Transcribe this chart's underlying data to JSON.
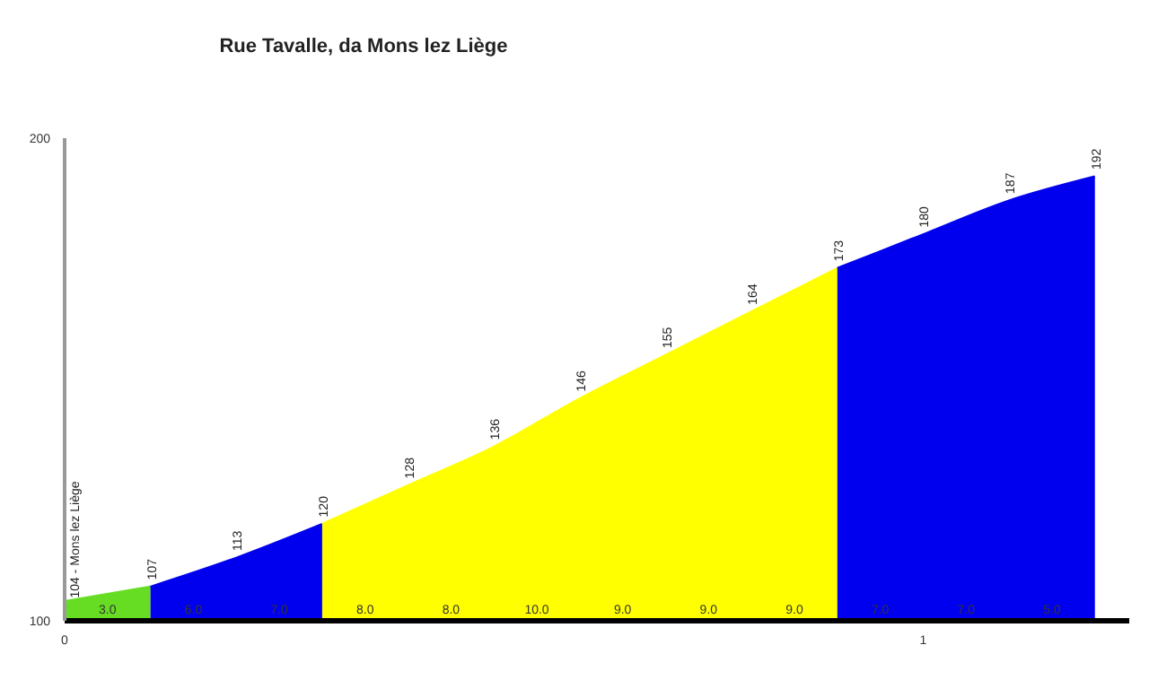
{
  "chart_data": {
    "type": "area",
    "title": "Rue Tavalle, da Mons lez Liège",
    "series": [
      {
        "color": "#66dd22",
        "x": [
          0,
          0.1
        ],
        "values": [
          104,
          107
        ],
        "value_labels": [
          null,
          "107"
        ]
      },
      {
        "color": "#0000ee",
        "x": [
          0.1,
          0.2,
          0.3
        ],
        "values": [
          107,
          113,
          120
        ],
        "value_labels": [
          null,
          "113",
          "120"
        ]
      },
      {
        "color": "#ffff00",
        "x": [
          0.3,
          0.4,
          0.5,
          0.6,
          0.7,
          0.8,
          0.9
        ],
        "values": [
          120,
          128,
          136,
          146,
          155,
          164,
          173
        ],
        "value_labels": [
          null,
          "128",
          "136",
          "146",
          "155",
          "164",
          "173"
        ]
      },
      {
        "color": "#0000ee",
        "x": [
          0.9,
          1.0,
          1.1,
          1.2
        ],
        "values": [
          173,
          180,
          187,
          192
        ],
        "value_labels": [
          null,
          "180",
          "187",
          "192"
        ]
      }
    ],
    "xlim": [
      0,
      1.24
    ],
    "xticks": [
      0,
      1
    ],
    "ylim": [
      100,
      200
    ],
    "yticks": [
      100,
      200
    ],
    "grid": false,
    "legend": false,
    "annotations": [
      {
        "text": "104 - Mons lez Liège",
        "x": 0,
        "y": 104
      },
      {
        "text": "3.0",
        "x": 0.05,
        "y": 100
      },
      {
        "text": "6.0",
        "x": 0.15,
        "y": 100
      },
      {
        "text": "7.0",
        "x": 0.25,
        "y": 100
      },
      {
        "text": "8.0",
        "x": 0.35,
        "y": 100
      },
      {
        "text": "8.0",
        "x": 0.45,
        "y": 100
      },
      {
        "text": "10.0",
        "x": 0.55,
        "y": 100
      },
      {
        "text": "9.0",
        "x": 0.65,
        "y": 100
      },
      {
        "text": "9.0",
        "x": 0.75,
        "y": 100
      },
      {
        "text": "9.0",
        "x": 0.85,
        "y": 100
      },
      {
        "text": "7.0",
        "x": 0.95,
        "y": 100
      },
      {
        "text": "7.0",
        "x": 1.05,
        "y": 100
      },
      {
        "text": "5.0",
        "x": 1.15,
        "y": 100
      }
    ]
  }
}
